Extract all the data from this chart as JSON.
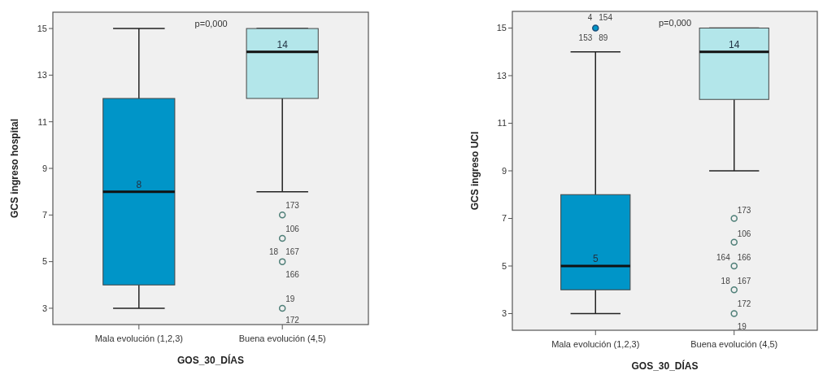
{
  "chart_data": [
    {
      "type": "box",
      "ylabel": "GCS ingreso hospital",
      "xlabel": "GOS_30_DÍAS",
      "categories": [
        "Mala evolución (1,2,3)",
        "Buena evolución (4,5)"
      ],
      "colors": [
        "#0095c8",
        "#b3e6ea"
      ],
      "ylim": [
        2.3,
        15.7
      ],
      "yticks": [
        3,
        5,
        7,
        9,
        11,
        13,
        15
      ],
      "grid": false,
      "boxes": [
        {
          "low": 3,
          "q1": 4,
          "median": 8,
          "q3": 12,
          "high": 15
        },
        {
          "low": 8,
          "q1": 12,
          "median": 14,
          "q3": 15,
          "high": 15,
          "outliers": [
            7,
            6,
            5,
            3
          ]
        }
      ],
      "annotations": [
        "p=0,000",
        {
          "text": "8",
          "x": "Mala evolución (1,2,3)",
          "y": 8
        },
        {
          "text": "14",
          "x": "Buena evolución (4,5)",
          "y": 14
        },
        "173",
        "106",
        "167",
        "18",
        "166",
        "19",
        "172"
      ]
    },
    {
      "type": "box",
      "ylabel": "GCS ingreso UCI",
      "xlabel": "GOS_30_DÍAS",
      "categories": [
        "Mala evolución (1,2,3)",
        "Buena evolución (4,5)"
      ],
      "colors": [
        "#0095c8",
        "#b3e6ea"
      ],
      "ylim": [
        2.3,
        15.7
      ],
      "yticks": [
        3,
        5,
        7,
        9,
        11,
        13,
        15
      ],
      "grid": false,
      "boxes": [
        {
          "low": 3,
          "q1": 4,
          "median": 5,
          "q3": 8,
          "high": 14,
          "outliers": [
            15
          ]
        },
        {
          "low": 9,
          "q1": 12,
          "median": 14,
          "q3": 15,
          "high": 15,
          "outliers": [
            7,
            6,
            5,
            4,
            3
          ]
        }
      ],
      "annotations": [
        "p=0,000",
        {
          "text": "5",
          "x": "Mala evolución (1,2,3)",
          "y": 5
        },
        {
          "text": "14",
          "x": "Buena evolución (4,5)",
          "y": 14
        },
        "154",
        "4",
        "89",
        "153",
        "173",
        "106",
        "166",
        "164",
        "167",
        "18",
        "172",
        "19"
      ]
    }
  ]
}
